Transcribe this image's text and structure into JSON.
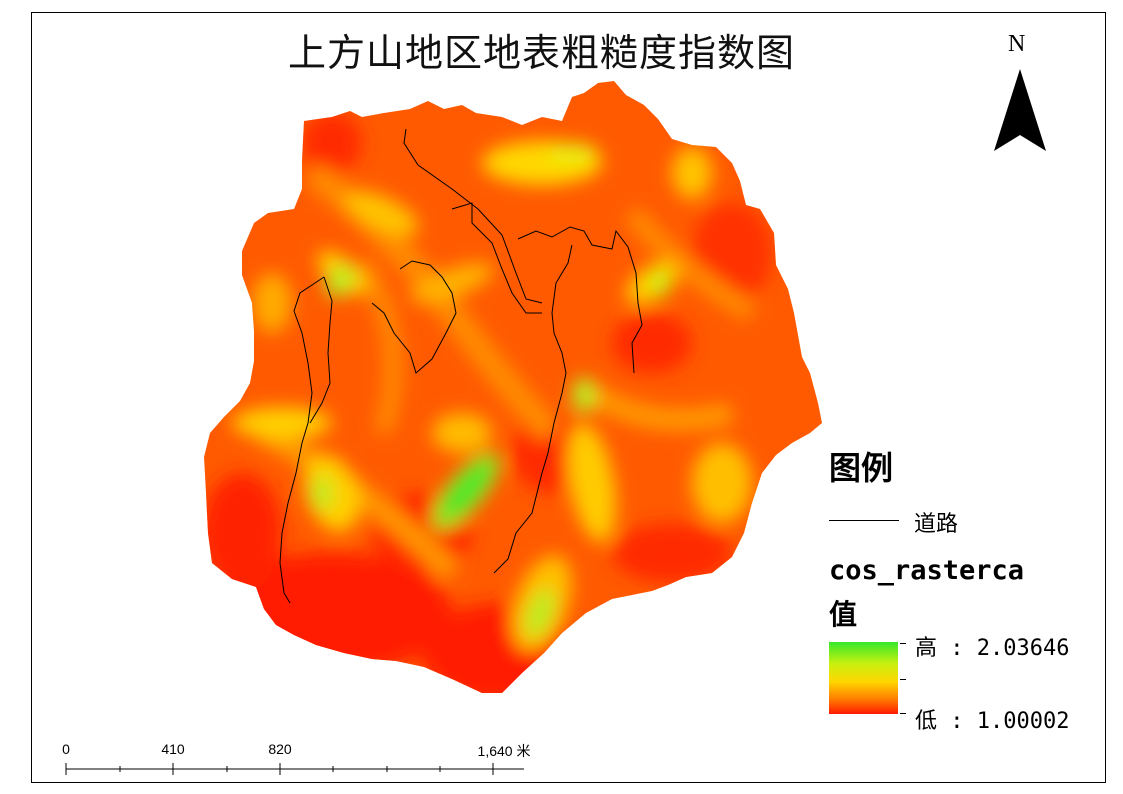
{
  "map": {
    "title": "上方山地区地表粗糙度指数图",
    "north_label": "N",
    "colors": {
      "high": "#35e82a",
      "mid": "#ffd700",
      "low": "#ff1a00",
      "road": "#000000"
    }
  },
  "legend": {
    "title": "图例",
    "road_label": "道路",
    "layer_name": "cos_rasterca",
    "layer_sub": "值",
    "high_label": "高 : 2.03646",
    "low_label": "低 : 1.00002"
  },
  "scalebar": {
    "labels": [
      "0",
      "410",
      "820",
      "1,640 米"
    ]
  }
}
